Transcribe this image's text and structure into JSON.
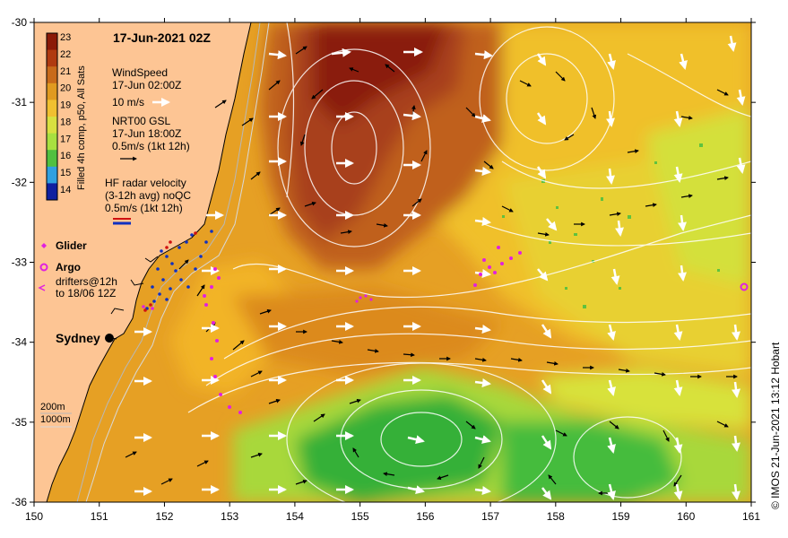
{
  "title": "17-Jun-2021 02Z",
  "colorbar": {
    "label": "Filled 4h comp, p50, All Sats",
    "ticks": [
      "23",
      "22",
      "21",
      "20",
      "19",
      "18",
      "17",
      "16",
      "15",
      "14"
    ],
    "colors": [
      "#8b1a08",
      "#b03a10",
      "#c86a1a",
      "#e09a20",
      "#f0c030",
      "#d8e040",
      "#a8e040",
      "#50c040",
      "#30a0e0",
      "#1020a0"
    ]
  },
  "legend": {
    "wind_title": "WindSpeed",
    "wind_time": "17-Jun 02:00Z",
    "wind_scale": "10 m/s",
    "gsl_title": "NRT00 GSL",
    "gsl_time": "17-Jun 18:00Z",
    "gsl_scale": "0.5m/s (1kt 12h)",
    "hf_title": "HF radar velocity",
    "hf_sub": "(3-12h avg) noQC",
    "hf_scale": "0.5m/s (1kt 12h)",
    "glider": "Glider",
    "argo": "Argo",
    "drifters_1": "drifters@12h",
    "drifters_2": "to 18/06 12Z",
    "iso_200": "200m",
    "iso_1000": "1000m"
  },
  "city": "Sydney",
  "credit": "© IMOS 21-Jun-2021 13:12 Hobart",
  "axes": {
    "x_ticks": [
      "150",
      "151",
      "152",
      "153",
      "154",
      "155",
      "156",
      "157",
      "158",
      "159",
      "160",
      "161"
    ],
    "y_ticks": [
      "-30",
      "-31",
      "-32",
      "-33",
      "-34",
      "-35",
      "-36"
    ],
    "x_range": [
      150,
      161
    ],
    "y_range": [
      -36,
      -30
    ]
  },
  "colors": {
    "land": "#fdc594",
    "warm_core": "#8e2a0c",
    "orange": "#e08a1a",
    "yellow": "#f2c22a",
    "lime": "#d8e43a",
    "green": "#3cb83c",
    "contour": "#ffffff",
    "glider": "#e020e0",
    "drifter": "#1030c0"
  }
}
